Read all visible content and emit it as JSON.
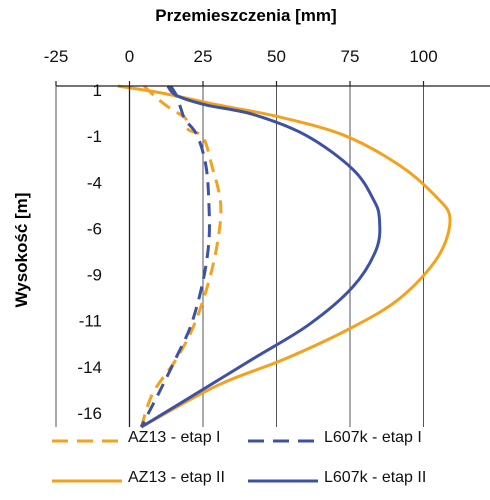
{
  "chart_data": {
    "type": "line",
    "xlabel": "Przemieszczenia [mm]",
    "ylabel": "Wysokość [m]",
    "x_ticks": [
      -25,
      0,
      25,
      50,
      75,
      100
    ],
    "y_tick_labels": [
      "1",
      "-1",
      "-4",
      "-6",
      "-9",
      "-11",
      "-14",
      "-16"
    ],
    "xlim": [
      -25,
      125
    ],
    "ylim": [
      -17,
      1
    ],
    "grid": "vertical",
    "legend_position": "bottom",
    "colors": {
      "AZ13": "#f4a21e",
      "L607k": "#3d52a3"
    },
    "series": [
      {
        "name": "AZ13 - etap I",
        "color": "#f4a21e",
        "style": "dashed",
        "points": [
          [
            5,
            1
          ],
          [
            9,
            0.4
          ],
          [
            14,
            -0.2
          ],
          [
            19,
            -0.7
          ],
          [
            20,
            -1.3
          ],
          [
            25,
            -1.7
          ],
          [
            28,
            -3.2
          ],
          [
            31,
            -5.2
          ],
          [
            30,
            -7.2
          ],
          [
            27,
            -9.3
          ],
          [
            22,
            -11.6
          ],
          [
            16,
            -13.4
          ],
          [
            8,
            -15.2
          ],
          [
            4,
            -17
          ]
        ]
      },
      {
        "name": "AZ13 - etap II",
        "color": "#f4a21e",
        "style": "solid",
        "points": [
          [
            -4,
            1
          ],
          [
            12,
            0.6
          ],
          [
            30,
            0
          ],
          [
            50,
            -0.6
          ],
          [
            73,
            -1.6
          ],
          [
            92,
            -3.2
          ],
          [
            104,
            -4.8
          ],
          [
            109,
            -6
          ],
          [
            105,
            -8
          ],
          [
            92,
            -10.2
          ],
          [
            75,
            -11.8
          ],
          [
            53,
            -13.4
          ],
          [
            30,
            -14.8
          ],
          [
            4,
            -17
          ]
        ]
      },
      {
        "name": "L607k - etap I",
        "color": "#3d52a3",
        "style": "dashed",
        "points": [
          [
            14,
            1
          ],
          [
            16,
            0.5
          ],
          [
            17.5,
            -0.2
          ],
          [
            19,
            -0.8
          ],
          [
            23,
            -1.6
          ],
          [
            26,
            -3.2
          ],
          [
            27,
            -5.2
          ],
          [
            27,
            -7.2
          ],
          [
            25,
            -9.3
          ],
          [
            21,
            -11.6
          ],
          [
            16,
            -13.3
          ],
          [
            10,
            -15.2
          ],
          [
            4,
            -17
          ]
        ]
      },
      {
        "name": "L607k - etap II",
        "color": "#3d52a3",
        "style": "solid",
        "points": [
          [
            13,
            1
          ],
          [
            16,
            0.5
          ],
          [
            26,
            0
          ],
          [
            42,
            -0.5
          ],
          [
            60,
            -1.6
          ],
          [
            76,
            -3.4
          ],
          [
            83,
            -5
          ],
          [
            85,
            -6
          ],
          [
            84,
            -7.6
          ],
          [
            76,
            -9.6
          ],
          [
            61,
            -11.6
          ],
          [
            42,
            -13.4
          ],
          [
            22,
            -15.3
          ],
          [
            4,
            -17
          ]
        ]
      }
    ]
  }
}
